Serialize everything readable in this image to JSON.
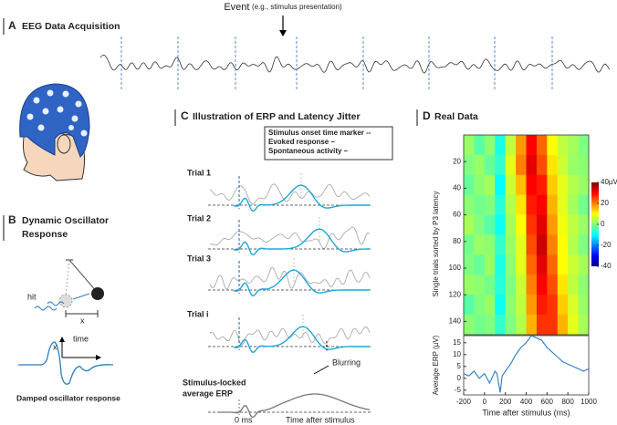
{
  "event": {
    "label": "Event",
    "note": "(e.g., stimulus presentation)"
  },
  "panel_a": {
    "letter": "A",
    "title": "EEG Data Acquisition"
  },
  "panel_b": {
    "letter": "B",
    "title": [
      "Dynamic Oscillator",
      "Response"
    ],
    "hit": "hit",
    "displacement": "x",
    "axis_y": "x",
    "axis_x": "time",
    "caption": "Damped oscillator response"
  },
  "panel_c": {
    "letter": "C",
    "title": "Illustration of ERP and Latency Jitter",
    "legend": [
      "Stimulus onset time marker --",
      "Evoked response –",
      "Spontaneous activity –"
    ],
    "legend_colors": [
      "#2e5fa8",
      "#19a8dc",
      "#aaaaaa"
    ],
    "trials": [
      "Trial 1",
      "Trial 2",
      "Trial 3",
      "Trial i"
    ],
    "average_label": [
      "Stimulus-locked",
      "average ERP"
    ],
    "blurring": "Blurring",
    "zero": "0 ms",
    "time_label": "Time after stimulus"
  },
  "panel_d": {
    "letter": "D",
    "title": "Real Data"
  },
  "chart_data": [
    {
      "type": "heatmap",
      "ylabel": "Single trials sorted by P3 latency",
      "colormap": "jet",
      "y_reversed": true,
      "xbins": [
        -200,
        -100,
        0,
        100,
        200,
        300,
        400,
        500,
        600,
        700,
        800,
        900,
        1000
      ],
      "ybins": [
        0,
        15,
        30,
        45,
        60,
        75,
        90,
        105,
        120,
        135,
        150
      ],
      "values": [
        [
          2,
          -3,
          1,
          -8,
          5,
          18,
          30,
          22,
          10,
          5,
          3,
          0
        ],
        [
          0,
          2,
          -2,
          -6,
          8,
          20,
          32,
          24,
          12,
          6,
          2,
          1
        ],
        [
          -2,
          1,
          3,
          -10,
          6,
          15,
          30,
          28,
          14,
          8,
          4,
          2
        ],
        [
          1,
          -1,
          0,
          -7,
          4,
          12,
          28,
          30,
          16,
          8,
          3,
          -1
        ],
        [
          3,
          0,
          -3,
          -9,
          3,
          10,
          26,
          32,
          18,
          9,
          5,
          2
        ],
        [
          -1,
          2,
          1,
          -6,
          2,
          8,
          24,
          34,
          20,
          10,
          4,
          0
        ],
        [
          0,
          -2,
          2,
          -8,
          1,
          8,
          22,
          32,
          22,
          10,
          6,
          3
        ],
        [
          2,
          1,
          -1,
          -7,
          0,
          6,
          20,
          30,
          24,
          12,
          5,
          1
        ],
        [
          -3,
          0,
          2,
          -9,
          1,
          5,
          18,
          28,
          26,
          14,
          7,
          2
        ],
        [
          1,
          -1,
          0,
          -6,
          0,
          4,
          16,
          26,
          26,
          16,
          8,
          3
        ]
      ],
      "xlim": [
        -200,
        1000
      ],
      "ylim": [
        0,
        150
      ],
      "yticks": [
        20,
        40,
        60,
        80,
        100,
        120,
        140
      ],
      "clim": [
        -40,
        40
      ],
      "colorbar_ticks": [
        {
          "value": 40,
          "label": "40µV"
        },
        20,
        0,
        -20,
        -40
      ]
    },
    {
      "type": "line",
      "xlabel": "Time after stimulus (ms)",
      "ylabel": "Average ERP (µV)",
      "color": "#2b7bbf",
      "x": [
        -200,
        -150,
        -100,
        -50,
        0,
        50,
        100,
        120,
        150,
        170,
        200,
        250,
        300,
        350,
        400,
        450,
        500,
        550,
        600,
        650,
        700,
        750,
        800,
        850,
        900,
        950,
        1000
      ],
      "values": [
        2,
        1,
        3,
        0,
        2,
        -2,
        3,
        2,
        -6,
        1,
        3,
        6,
        10,
        13,
        15,
        18,
        17,
        16,
        13,
        11,
        9,
        7,
        6,
        5,
        4,
        3,
        4
      ],
      "xlim": [
        -200,
        1000
      ],
      "ylim": [
        -7,
        18
      ],
      "xticks": [
        -200,
        0,
        200,
        400,
        600,
        800,
        1000
      ],
      "yticks": [
        -5,
        0,
        5,
        10,
        15
      ]
    }
  ]
}
